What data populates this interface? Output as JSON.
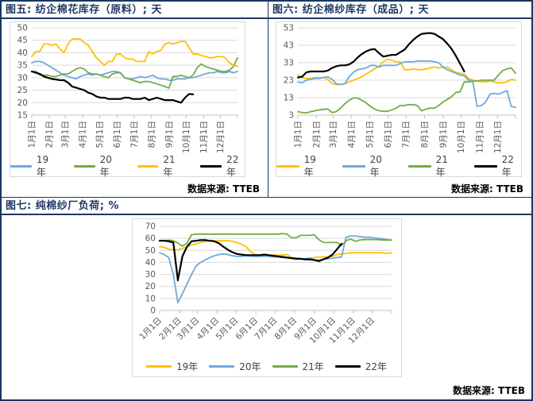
{
  "panels": [
    {
      "title": "图五: 纺企棉花库存（原料）; 天",
      "source": "数据来源: TTEB"
    },
    {
      "title": "图六: 纺企棉纱库存（成品）; 天",
      "source": "数据来源: TTEB"
    },
    {
      "title": "图七: 纯棉纱厂负荷; %",
      "source": "数据来源: TTEB"
    }
  ],
  "colors": {
    "title_navy": "#1F3864",
    "frame_border": "#17375E",
    "grid_gray": "#D9D9D9",
    "axis_gray": "#BFBFBF",
    "tick_label_gray": "#595959",
    "series_blue": "#6FA8DC",
    "series_green": "#70AD47",
    "series_yellow": "#FFC000",
    "series_black": "#000000"
  },
  "chart_data": [
    {
      "type": "line",
      "title": "纺企棉花库存（原料）",
      "unit": "天",
      "categories": [
        "1月1日",
        "2月1日",
        "3月1日",
        "4月1日",
        "5月1日",
        "6月1日",
        "7月1日",
        "8月1日",
        "9月1日",
        "10月1日",
        "11月1日",
        "12月1日"
      ],
      "month_days": [
        0,
        31,
        59,
        90,
        120,
        151,
        181,
        212,
        243,
        273,
        304,
        334
      ],
      "points_per_year": 52,
      "ylim": [
        15,
        50
      ],
      "yticks": [
        50,
        45,
        40,
        35,
        30,
        25,
        20,
        15
      ],
      "grid": true,
      "legend_position": "bottom",
      "x_label_rotation": -90,
      "series": [
        {
          "name": "19年",
          "color": "#6FA8DC",
          "values": [
            36,
            36.5,
            36.5,
            36,
            35,
            34,
            33,
            32,
            31,
            30.5,
            30,
            29.5,
            30.5,
            31,
            31.5,
            31,
            31.5,
            31,
            31.5,
            32,
            32.5,
            32.5,
            32,
            30,
            29.5,
            29.5,
            30,
            30.5,
            30,
            30.5,
            31,
            30,
            29.5,
            29.5,
            29,
            29,
            29.5,
            29.5,
            29.5,
            30,
            30,
            30.5,
            31,
            31.5,
            32,
            32,
            32.5,
            32,
            32,
            32.5,
            32,
            32.5
          ]
        },
        {
          "name": "20年",
          "color": "#70AD47",
          "values": [
            32.5,
            32.5,
            31,
            31,
            31,
            30.5,
            30.5,
            31,
            31.5,
            31.5,
            32.5,
            33.5,
            34,
            33.5,
            32,
            31.5,
            31.5,
            31,
            30.5,
            30,
            31.5,
            32,
            32,
            30,
            29.5,
            29,
            28.5,
            28,
            28.5,
            28.5,
            28,
            27.5,
            27,
            26.5,
            25.8,
            30.5,
            30.5,
            31,
            30.5,
            30,
            31,
            34,
            35.5,
            34.5,
            34,
            33.5,
            33,
            32.5,
            32.5,
            33,
            34.5,
            38
          ]
        },
        {
          "name": "21年",
          "color": "#FFC000",
          "values": [
            38.5,
            40.5,
            40.5,
            43.5,
            43.5,
            43,
            43.5,
            41.5,
            40,
            43.5,
            45.5,
            45.5,
            45.5,
            44,
            43,
            40.5,
            38,
            36.5,
            35,
            36.5,
            36.5,
            39.5,
            39.5,
            38,
            37.5,
            37.5,
            36.5,
            36.5,
            36.5,
            40.5,
            39.5,
            40.5,
            41,
            43.5,
            44,
            43.5,
            44,
            44.5,
            44.5,
            42,
            39.5,
            39.5,
            39,
            38.5,
            38,
            38,
            38.5,
            38.5,
            38,
            36,
            35,
            34.5
          ]
        },
        {
          "name": "22年",
          "color": "#000000",
          "values": [
            32.5,
            32,
            31.5,
            30.5,
            30,
            29.5,
            29.3,
            29,
            29,
            28,
            26.5,
            26,
            25.5,
            25,
            24,
            23.5,
            22.5,
            22,
            22,
            21.5,
            21.5,
            21.5,
            21.5,
            22,
            22,
            21.5,
            21.5,
            21.5,
            22,
            21,
            21.5,
            22,
            21.5,
            21,
            21,
            21,
            20.5,
            20,
            22,
            23.5,
            23.3
          ]
        }
      ]
    },
    {
      "type": "line",
      "title": "纺企棉纱库存（成品）",
      "unit": "天",
      "categories": [
        "1月1日",
        "2月1日",
        "3月1日",
        "4月1日",
        "5月1日",
        "6月1日",
        "7月1日",
        "8月1日",
        "9月1日",
        "10月1日",
        "11月1日",
        "12月1日"
      ],
      "month_days": [
        0,
        31,
        59,
        90,
        120,
        151,
        181,
        212,
        243,
        273,
        304,
        334
      ],
      "points_per_year": 52,
      "ylim": [
        3,
        53
      ],
      "yticks": [
        53,
        43,
        33,
        23,
        13,
        3
      ],
      "grid": true,
      "legend_position": "bottom",
      "x_label_rotation": -90,
      "series": [
        {
          "name": "19年",
          "color": "#FFC000",
          "values": [
            26,
            24.5,
            24,
            24,
            24.5,
            24.5,
            24.5,
            23.5,
            21,
            20.5,
            20.5,
            21,
            22,
            23,
            24,
            25,
            26.5,
            28,
            29.5,
            31,
            33.5,
            35,
            34.5,
            33.5,
            33.5,
            29,
            29,
            29.5,
            29,
            29,
            29.5,
            30,
            30.5,
            30,
            30.5,
            30.5,
            29,
            27.5,
            27,
            26.5,
            24,
            23,
            22.5,
            22,
            22,
            22.5,
            22,
            21.5,
            21.5,
            22,
            23.5,
            23
          ]
        },
        {
          "name": "20年",
          "color": "#6FA8DC",
          "values": [
            22,
            21.5,
            23,
            23.5,
            24,
            24,
            24.5,
            25,
            23.5,
            21,
            20.5,
            21,
            25,
            27.5,
            29,
            29.5,
            30,
            31.5,
            31.5,
            30.5,
            31.5,
            31.5,
            31.5,
            31.5,
            32.5,
            33.5,
            33.5,
            33.5,
            34,
            34,
            34,
            34,
            33.5,
            33,
            30.5,
            29,
            28,
            27,
            26,
            25.5,
            23,
            22,
            8,
            8.5,
            10.5,
            15,
            15.5,
            15,
            16,
            17,
            8,
            7.5
          ]
        },
        {
          "name": "21年",
          "color": "#70AD47",
          "values": [
            5,
            4.5,
            4.3,
            5,
            5.5,
            6,
            6.3,
            6.5,
            4.5,
            5,
            7,
            9.5,
            11.5,
            12.8,
            12.8,
            11.5,
            10,
            8,
            6.5,
            5.5,
            5.2,
            5.2,
            6,
            7,
            8.5,
            8.5,
            9,
            9,
            8.5,
            5.5,
            6.5,
            7,
            7,
            8.5,
            10.5,
            12,
            13.5,
            16,
            16.3,
            22,
            22,
            22.5,
            22.5,
            23,
            23,
            23,
            23,
            26,
            28.5,
            29.5,
            30,
            27
          ]
        },
        {
          "name": "22年",
          "color": "#000000",
          "values": [
            24.5,
            25,
            27.5,
            28,
            28,
            28,
            28,
            28.5,
            30,
            31,
            31.5,
            31.5,
            32,
            33.5,
            36,
            38,
            39.5,
            40.5,
            40.8,
            38.5,
            36.5,
            37,
            37.5,
            37.5,
            39,
            40.5,
            43.5,
            46,
            48,
            49.5,
            49.8,
            50,
            49.5,
            48,
            46.5,
            44,
            41,
            37,
            32.5,
            28
          ]
        }
      ]
    },
    {
      "type": "line",
      "title": "纯棉纱厂负荷",
      "unit": "%",
      "categories": [
        "1月1日",
        "2月1日",
        "3月1日",
        "4月1日",
        "5月1日",
        "6月1日",
        "7月1日",
        "8月1日",
        "9月1日",
        "10月1日",
        "11月1日",
        "12月1日"
      ],
      "month_days": [
        0,
        31,
        59,
        90,
        120,
        151,
        181,
        212,
        243,
        273,
        304,
        334
      ],
      "points_per_year": 52,
      "ylim": [
        0,
        70
      ],
      "yticks": [
        70,
        60,
        50,
        40,
        30,
        20,
        10,
        0
      ],
      "grid": true,
      "legend_position": "bottom",
      "x_label_rotation": -45,
      "series": [
        {
          "name": "19年",
          "color": "#FFC000",
          "values": [
            53,
            52.5,
            51,
            50.5,
            50.5,
            51.5,
            53,
            54.5,
            55.5,
            56.5,
            57.5,
            58,
            58,
            58,
            58,
            58,
            57.5,
            56.5,
            55,
            53,
            49,
            46.5,
            46,
            46,
            46,
            46,
            46,
            46,
            46.5,
            44,
            43.5,
            43,
            43,
            43.5,
            44,
            44.5,
            44.5,
            44.5,
            45,
            46.5,
            47,
            47.5,
            48,
            48,
            48,
            48,
            48,
            48,
            48,
            48,
            47.5,
            48
          ]
        },
        {
          "name": "20年",
          "color": "#6FA8DC",
          "values": [
            48,
            46.5,
            44,
            30,
            6.5,
            14,
            22,
            30,
            37,
            40,
            42,
            44,
            45.5,
            46.5,
            47,
            46.5,
            45.5,
            45,
            45,
            45.5,
            45,
            45,
            45,
            45,
            45,
            44.5,
            44.5,
            44,
            44,
            43.5,
            43.5,
            43,
            43,
            43.5,
            42,
            42,
            42.5,
            43,
            43.5,
            44,
            44.5,
            61,
            62,
            62,
            61.5,
            61,
            61,
            60.5,
            60,
            59.5,
            59,
            58.5
          ]
        },
        {
          "name": "21年",
          "color": "#70AD47",
          "values": [
            58,
            58,
            58.5,
            58,
            56,
            53.5,
            56,
            63,
            63.5,
            63.5,
            63.5,
            63.5,
            63.5,
            63.5,
            63.5,
            63.5,
            63.5,
            63.5,
            63.5,
            63.5,
            63.5,
            63.5,
            63.5,
            63.5,
            63.5,
            63.5,
            63.5,
            64,
            63.5,
            60.5,
            60.5,
            62.5,
            62.5,
            62.5,
            63,
            59,
            56.5,
            56.5,
            56.5,
            56.5,
            54,
            58,
            59.5,
            57.5,
            58.5,
            59,
            59,
            59,
            59,
            58.5,
            58.5,
            58.5
          ]
        },
        {
          "name": "22年",
          "color": "#000000",
          "values": [
            58,
            58,
            57.5,
            56.5,
            25,
            45,
            53,
            57.5,
            58,
            58.5,
            58.5,
            58,
            57.5,
            56,
            53,
            50.5,
            48.5,
            47,
            46.5,
            46,
            46,
            46,
            46,
            46.5,
            46,
            45.5,
            45,
            44.5,
            44,
            43.5,
            43,
            43,
            42.5,
            42.5,
            42,
            41,
            42.5,
            44,
            46.5,
            51,
            55.5
          ]
        }
      ]
    }
  ]
}
